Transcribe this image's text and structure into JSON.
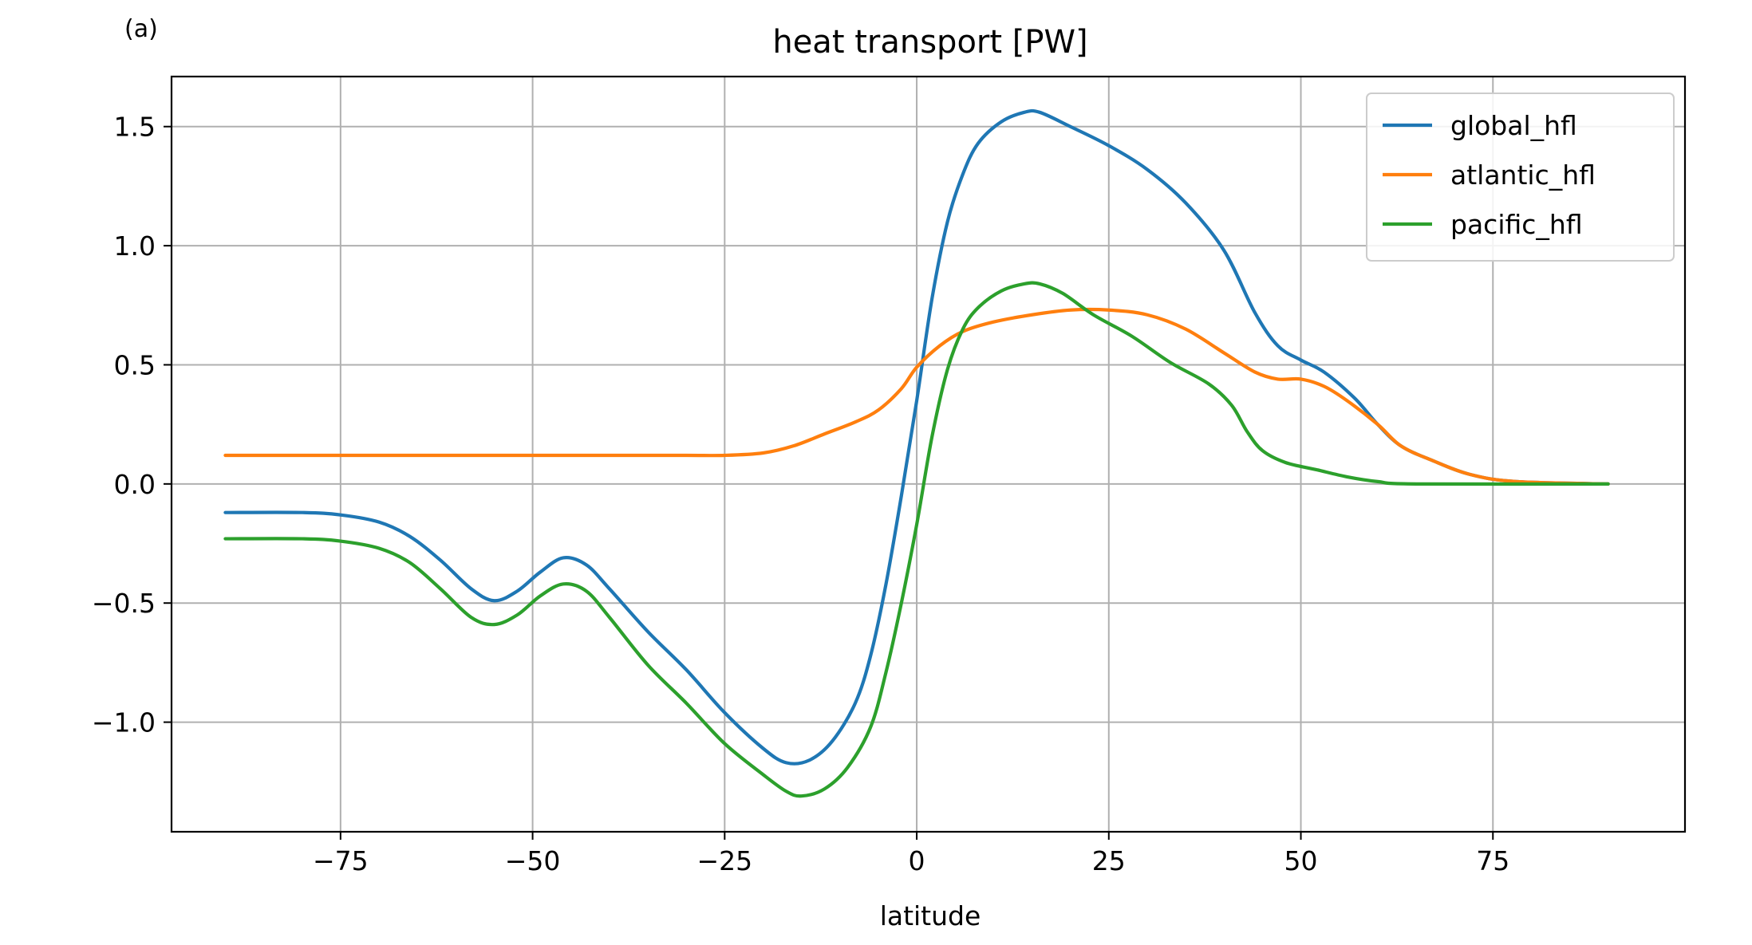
{
  "chart_data": {
    "type": "line",
    "panel_label": "(a)",
    "title": "heat transport [PW]",
    "xlabel": "latitude",
    "ylabel": "",
    "xlim": [
      -97,
      100
    ],
    "ylim": [
      -1.46,
      1.71
    ],
    "xticks": [
      -75,
      -50,
      -25,
      0,
      25,
      50,
      75
    ],
    "xtick_labels": [
      "−75",
      "−50",
      "−25",
      "0",
      "25",
      "50",
      "75"
    ],
    "yticks": [
      -1.0,
      -0.5,
      0.0,
      0.5,
      1.0,
      1.5
    ],
    "ytick_labels": [
      "−1.0",
      "−0.5",
      "0.0",
      "0.5",
      "1.0",
      "1.5"
    ],
    "grid": true,
    "legend_position": "top-right",
    "series": [
      {
        "name": "global_hfl",
        "color": "#1f77b4",
        "points": [
          [
            -90,
            -0.12
          ],
          [
            -80,
            -0.12
          ],
          [
            -75,
            -0.13
          ],
          [
            -70,
            -0.16
          ],
          [
            -66,
            -0.22
          ],
          [
            -62,
            -0.32
          ],
          [
            -58,
            -0.44
          ],
          [
            -55,
            -0.49
          ],
          [
            -52,
            -0.45
          ],
          [
            -49,
            -0.37
          ],
          [
            -46,
            -0.31
          ],
          [
            -43,
            -0.34
          ],
          [
            -40,
            -0.44
          ],
          [
            -35,
            -0.62
          ],
          [
            -30,
            -0.78
          ],
          [
            -25,
            -0.96
          ],
          [
            -20,
            -1.11
          ],
          [
            -17,
            -1.17
          ],
          [
            -14,
            -1.16
          ],
          [
            -11,
            -1.08
          ],
          [
            -8,
            -0.92
          ],
          [
            -6,
            -0.72
          ],
          [
            -4,
            -0.42
          ],
          [
            -2,
            -0.05
          ],
          [
            0,
            0.35
          ],
          [
            2,
            0.78
          ],
          [
            4,
            1.1
          ],
          [
            6,
            1.3
          ],
          [
            8,
            1.43
          ],
          [
            11,
            1.52
          ],
          [
            14,
            1.56
          ],
          [
            16,
            1.56
          ],
          [
            20,
            1.5
          ],
          [
            25,
            1.42
          ],
          [
            30,
            1.32
          ],
          [
            35,
            1.18
          ],
          [
            40,
            0.98
          ],
          [
            44,
            0.72
          ],
          [
            47,
            0.58
          ],
          [
            50,
            0.52
          ],
          [
            53,
            0.47
          ],
          [
            57,
            0.36
          ],
          [
            60,
            0.25
          ],
          [
            63,
            0.16
          ],
          [
            67,
            0.1
          ],
          [
            72,
            0.04
          ],
          [
            78,
            0.01
          ],
          [
            90,
            0.0
          ]
        ]
      },
      {
        "name": "atlantic_hfl",
        "color": "#ff7f0e",
        "points": [
          [
            -90,
            0.12
          ],
          [
            -40,
            0.12
          ],
          [
            -30,
            0.12
          ],
          [
            -25,
            0.12
          ],
          [
            -20,
            0.13
          ],
          [
            -16,
            0.16
          ],
          [
            -12,
            0.21
          ],
          [
            -8,
            0.26
          ],
          [
            -5,
            0.31
          ],
          [
            -2,
            0.4
          ],
          [
            0,
            0.49
          ],
          [
            3,
            0.58
          ],
          [
            6,
            0.64
          ],
          [
            10,
            0.68
          ],
          [
            15,
            0.71
          ],
          [
            20,
            0.73
          ],
          [
            25,
            0.73
          ],
          [
            30,
            0.71
          ],
          [
            35,
            0.65
          ],
          [
            40,
            0.55
          ],
          [
            44,
            0.47
          ],
          [
            47,
            0.44
          ],
          [
            50,
            0.44
          ],
          [
            53,
            0.41
          ],
          [
            56,
            0.35
          ],
          [
            60,
            0.25
          ],
          [
            63,
            0.16
          ],
          [
            67,
            0.1
          ],
          [
            72,
            0.04
          ],
          [
            78,
            0.01
          ],
          [
            90,
            0.0
          ]
        ]
      },
      {
        "name": "pacific_hfl",
        "color": "#2ca02c",
        "points": [
          [
            -90,
            -0.23
          ],
          [
            -80,
            -0.23
          ],
          [
            -75,
            -0.24
          ],
          [
            -70,
            -0.27
          ],
          [
            -66,
            -0.33
          ],
          [
            -62,
            -0.44
          ],
          [
            -58,
            -0.56
          ],
          [
            -55,
            -0.59
          ],
          [
            -52,
            -0.55
          ],
          [
            -49,
            -0.47
          ],
          [
            -46,
            -0.42
          ],
          [
            -43,
            -0.45
          ],
          [
            -40,
            -0.56
          ],
          [
            -35,
            -0.76
          ],
          [
            -30,
            -0.92
          ],
          [
            -25,
            -1.09
          ],
          [
            -20,
            -1.22
          ],
          [
            -17,
            -1.29
          ],
          [
            -15,
            -1.31
          ],
          [
            -12,
            -1.28
          ],
          [
            -9,
            -1.19
          ],
          [
            -6,
            -1.02
          ],
          [
            -4,
            -0.79
          ],
          [
            -2,
            -0.5
          ],
          [
            0,
            -0.17
          ],
          [
            2,
            0.2
          ],
          [
            4,
            0.48
          ],
          [
            6,
            0.65
          ],
          [
            8,
            0.74
          ],
          [
            11,
            0.81
          ],
          [
            14,
            0.84
          ],
          [
            16,
            0.84
          ],
          [
            19,
            0.8
          ],
          [
            23,
            0.71
          ],
          [
            28,
            0.62
          ],
          [
            33,
            0.51
          ],
          [
            38,
            0.42
          ],
          [
            41,
            0.33
          ],
          [
            43,
            0.22
          ],
          [
            45,
            0.14
          ],
          [
            48,
            0.09
          ],
          [
            52,
            0.06
          ],
          [
            56,
            0.03
          ],
          [
            60,
            0.01
          ],
          [
            65,
            0.0
          ],
          [
            90,
            0.0
          ]
        ]
      }
    ]
  }
}
